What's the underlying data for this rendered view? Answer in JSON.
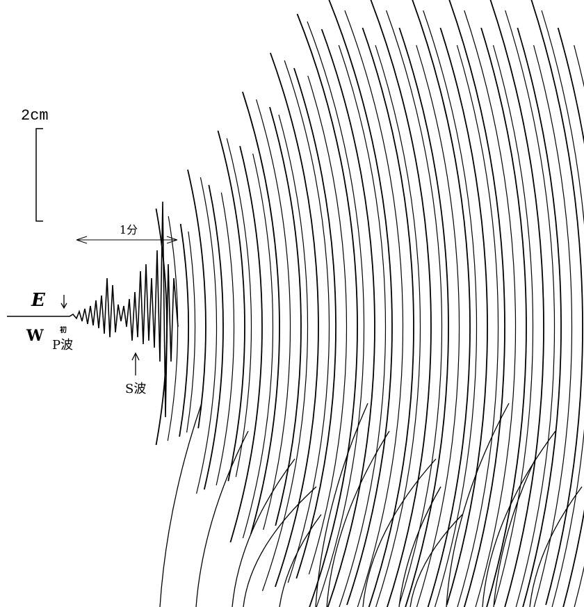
{
  "scale_label": "2cm",
  "time_label": "1分",
  "east_label": "E",
  "west_label": "W",
  "first_motion_label": "初",
  "p_wave_label": "P波",
  "s_wave_label": "S波"
}
